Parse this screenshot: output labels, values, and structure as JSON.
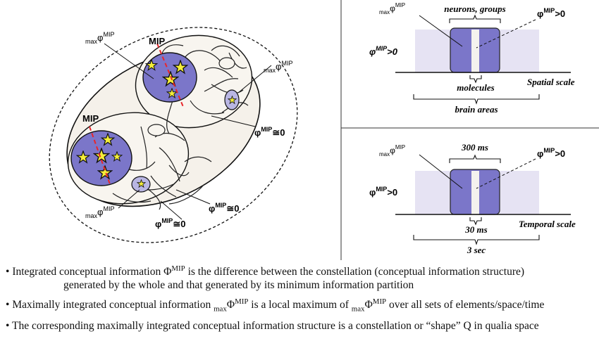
{
  "left_diagram": {
    "upper_mip": "MIP",
    "lower_mip": "MIP",
    "max_phi_upper": {
      "pre": "max",
      "sym": "φ",
      "sup": "MIP"
    },
    "max_phi_right": {
      "pre": "max",
      "sym": "φ",
      "sup": "MIP"
    },
    "max_phi_bottom": {
      "pre": "max",
      "sym": "φ",
      "sup": "MIP"
    },
    "phi_approx_right": {
      "sym": "φ",
      "sup": "MIP",
      "rel": "≅0"
    },
    "phi_approx_bottom_right": {
      "sym": "φ",
      "sup": "MIP",
      "rel": "≅0"
    },
    "phi_approx_bottom": {
      "sym": "φ",
      "sup": "MIP",
      "rel": "≅0"
    }
  },
  "spatial_panel": {
    "top_label": "neurons, groups",
    "max_label": {
      "pre": "max",
      "sym": "φ",
      "sup": "MIP"
    },
    "phi_right": {
      "sym": "φ",
      "sup": "MIP",
      "rel": ">0"
    },
    "phi_left": {
      "sym": "φ",
      "sup": "MIP",
      "rel": ">0"
    },
    "axis_label": "Spatial scale",
    "inner_label": "molecules",
    "outer_label": "brain areas"
  },
  "temporal_panel": {
    "top_label": "300 ms",
    "max_label": {
      "pre": "max",
      "sym": "φ",
      "sup": "MIP"
    },
    "phi_right": {
      "sym": "φ",
      "sup": "MIP",
      "rel": ">0"
    },
    "phi_left": {
      "sym": "φ",
      "sup": "MIP",
      "rel": ">0"
    },
    "axis_label": "Temporal scale",
    "inner_label": "30 ms",
    "outer_label": "3 sec"
  },
  "bullets": {
    "b1": {
      "bullet": "•",
      "text_a": " Integrated conceptual information Φ",
      "sup": "MIP",
      "text_b": " is the difference between the constellation (conceptual information structure)",
      "cont": "generated by the whole and that generated by its minimum information partition"
    },
    "b2": {
      "bullet": "•",
      "text_a": " Maximally integrated conceptual information ",
      "sub1": "max",
      "phi1": "Φ",
      "sup1": "MIP",
      "text_b": " is a local maximum of ",
      "sub2": "max",
      "phi2": "Φ",
      "sup2": "MIP",
      "text_c": " over all sets of elements/space/time"
    },
    "b3": {
      "bullet": "•",
      "text": " The corresponding maximally integrated conceptual information structure is a constellation or “shape” Q in qualia space"
    }
  },
  "colors": {
    "complex_fill": "#7b76c9",
    "background_band": "#e6e3f3",
    "shell_fill": "#f5f1ea",
    "star": "#f5ee3a",
    "mip_line": "#e8262b"
  }
}
